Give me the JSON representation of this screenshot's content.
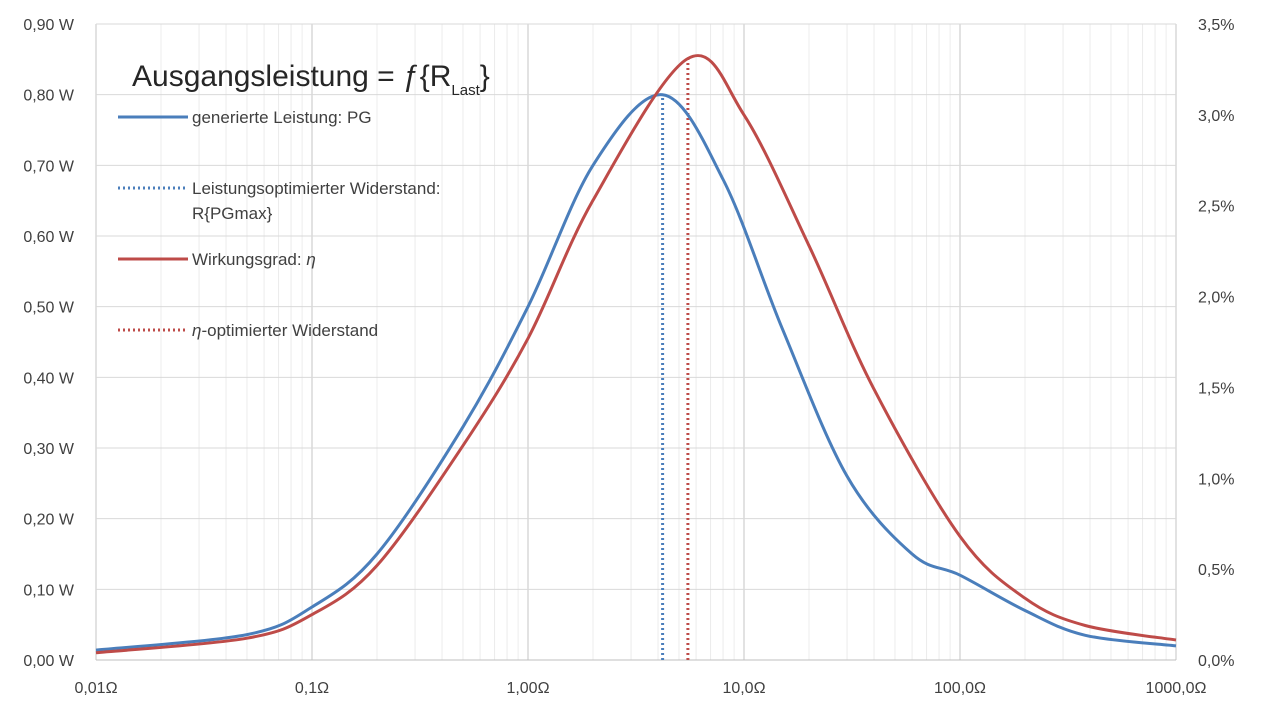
{
  "chart_data": {
    "type": "line",
    "title_main": "Ausgangsleistung = ƒ{R",
    "title_sub": "Last",
    "title_end": "}",
    "x_scale": "log",
    "xlim": [
      0.01,
      1000
    ],
    "x_ticks": [
      0.01,
      0.1,
      1,
      10,
      100,
      1000
    ],
    "x_tick_labels": [
      "0,01Ω",
      "0,1Ω",
      "1,00Ω",
      "10,0Ω",
      "100,0Ω",
      "1000,0Ω"
    ],
    "ylim_left": [
      0,
      0.9
    ],
    "y_left_ticks": [
      0,
      0.1,
      0.2,
      0.3,
      0.4,
      0.5,
      0.6,
      0.7,
      0.8,
      0.9
    ],
    "y_left_tick_labels": [
      "0,00 W",
      "0,10 W",
      "0,20 W",
      "0,30 W",
      "0,40 W",
      "0,50 W",
      "0,60 W",
      "0,70 W",
      "0,80 W",
      "0,90 W"
    ],
    "ylim_right": [
      0,
      0.035
    ],
    "y_right_ticks": [
      0,
      0.005,
      0.01,
      0.015,
      0.02,
      0.025,
      0.03,
      0.035
    ],
    "y_right_tick_labels": [
      "0,0%",
      "0,5%",
      "1,0%",
      "1,5%",
      "2,0%",
      "2,5%",
      "3,0%",
      "3,5%"
    ],
    "grid": "major and minor vertical, major horizontal",
    "legend_position": "top-left",
    "series": [
      {
        "name": "generierte Leistung: PG",
        "axis": "left",
        "style": "solid",
        "color": "#4a7ebb",
        "x": [
          0.01,
          0.05,
          0.1,
          0.2,
          0.5,
          1,
          2,
          4.2,
          8,
          15,
          30,
          60,
          100,
          200,
          380,
          1000
        ],
        "y": [
          0.014,
          0.036,
          0.075,
          0.15,
          0.33,
          0.5,
          0.7,
          0.8,
          0.68,
          0.47,
          0.26,
          0.15,
          0.12,
          0.07,
          0.035,
          0.02
        ]
      },
      {
        "name": "Leistungsoptimierter Widerstand: R{PGmax}",
        "name_line1": "Leistungsoptimierter Widerstand:",
        "name_line2": "R{PGmax}",
        "axis": "left",
        "style": "dotted",
        "color": "#4a7ebb",
        "x": [
          4.2,
          4.2
        ],
        "y": [
          0,
          0.8
        ]
      },
      {
        "name": "Wirkungsgrad: η",
        "name_text": "Wirkungsgrad: ",
        "name_symbol": "η",
        "axis": "right",
        "style": "solid",
        "color": "#be4b48",
        "x": [
          0.01,
          0.05,
          0.1,
          0.2,
          0.5,
          1,
          2,
          5.5,
          10,
          20,
          40,
          100,
          200,
          380,
          1000
        ],
        "y": [
          0.0004,
          0.0012,
          0.0025,
          0.0052,
          0.0118,
          0.0177,
          0.0253,
          0.0331,
          0.03,
          0.0228,
          0.0149,
          0.0068,
          0.0034,
          0.0019,
          0.0011
        ]
      },
      {
        "name": "η-optimierter Widerstand",
        "name_symbol": "η",
        "name_text": "-optimierter Widerstand",
        "axis": "right",
        "style": "dotted",
        "color": "#be4b48",
        "x": [
          5.5,
          5.5
        ],
        "y": [
          0,
          0.0331
        ]
      }
    ]
  }
}
